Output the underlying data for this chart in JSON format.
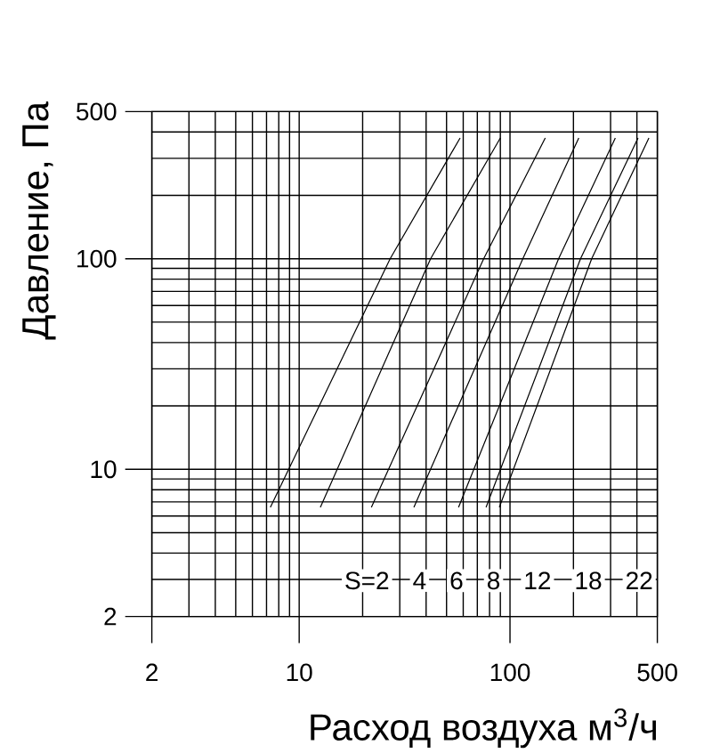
{
  "chart_data": {
    "type": "line",
    "xlabel": "Расход воздуха м$^{3}$/ч",
    "ylabel": "Давление, Па",
    "log": "xy",
    "xlim": [
      2,
      500
    ],
    "ylim": [
      2,
      500
    ],
    "xticks": [
      2,
      10,
      100,
      500
    ],
    "yticks": [
      2,
      10,
      100,
      500
    ],
    "grid": true,
    "annotations": [
      "S=2",
      "4",
      "6",
      "8",
      "12",
      "18",
      "22"
    ],
    "series": [
      {
        "color": "#000000",
        "x": [
          7.3,
          27,
          58
        ],
        "values": [
          6.6,
          100,
          375
        ]
      },
      {
        "color": "#000000",
        "x": [
          12.6,
          42,
          90
        ],
        "values": [
          6.6,
          100,
          375
        ]
      },
      {
        "color": "#000000",
        "x": [
          22,
          75,
          147
        ],
        "values": [
          6.6,
          100,
          375
        ]
      },
      {
        "color": "#000000",
        "x": [
          35,
          115,
          212
        ],
        "values": [
          6.6,
          100,
          375
        ]
      },
      {
        "color": "#000000",
        "x": [
          57,
          170,
          316
        ],
        "values": [
          6.6,
          100,
          375
        ]
      },
      {
        "color": "#000000",
        "x": [
          77,
          216,
          405
        ],
        "values": [
          6.6,
          100,
          375
        ]
      },
      {
        "color": "#000000",
        "x": [
          89,
          244,
          456
        ],
        "values": [
          6.6,
          100,
          375
        ]
      }
    ]
  }
}
